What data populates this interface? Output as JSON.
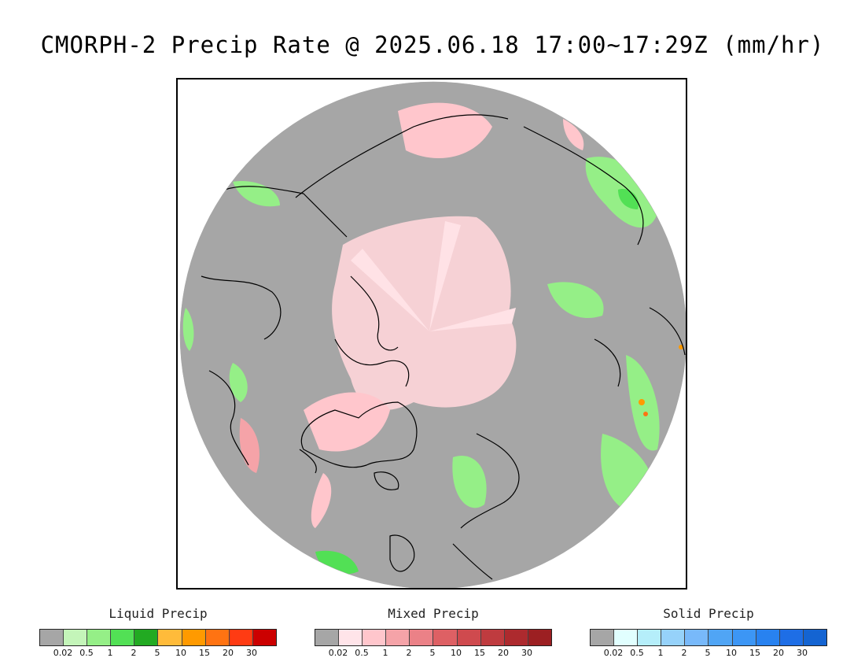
{
  "title": "CMORPH-2 Precip Rate @ 2025.06.18 17:00~17:29Z (mm/hr)",
  "legends": [
    {
      "title": "Liquid Precip",
      "colors": [
        "#a6a6a6",
        "#c4f5b9",
        "#95ef87",
        "#52e055",
        "#22aa22",
        "#ffbb3a",
        "#ff9a00",
        "#ff7312",
        "#ff3b13",
        "#cc0000"
      ],
      "ticks": [
        "0.02",
        "0.5",
        "1",
        "2",
        "5",
        "10",
        "15",
        "20",
        "30"
      ]
    },
    {
      "title": "Mixed Precip",
      "colors": [
        "#a6a6a6",
        "#ffe4e9",
        "#ffc6cc",
        "#f5a3a8",
        "#eb8187",
        "#de6064",
        "#cf4a4e",
        "#bf3b3f",
        "#ad2a2e",
        "#9c1f22"
      ],
      "ticks": [
        "0.02",
        "0.5",
        "1",
        "2",
        "5",
        "10",
        "15",
        "20",
        "30"
      ]
    },
    {
      "title": "Solid Precip",
      "colors": [
        "#a6a6a6",
        "#e1ffff",
        "#b5eefa",
        "#96d2fa",
        "#78b9fa",
        "#50a5f5",
        "#3c96f5",
        "#2882f0",
        "#1e6ee6",
        "#1464d2"
      ],
      "ticks": [
        "0.02",
        "0.5",
        "1",
        "2",
        "5",
        "10",
        "15",
        "20",
        "30"
      ]
    }
  ],
  "map": {
    "background": "#a6a6a6",
    "coastline_color": "#000000"
  }
}
